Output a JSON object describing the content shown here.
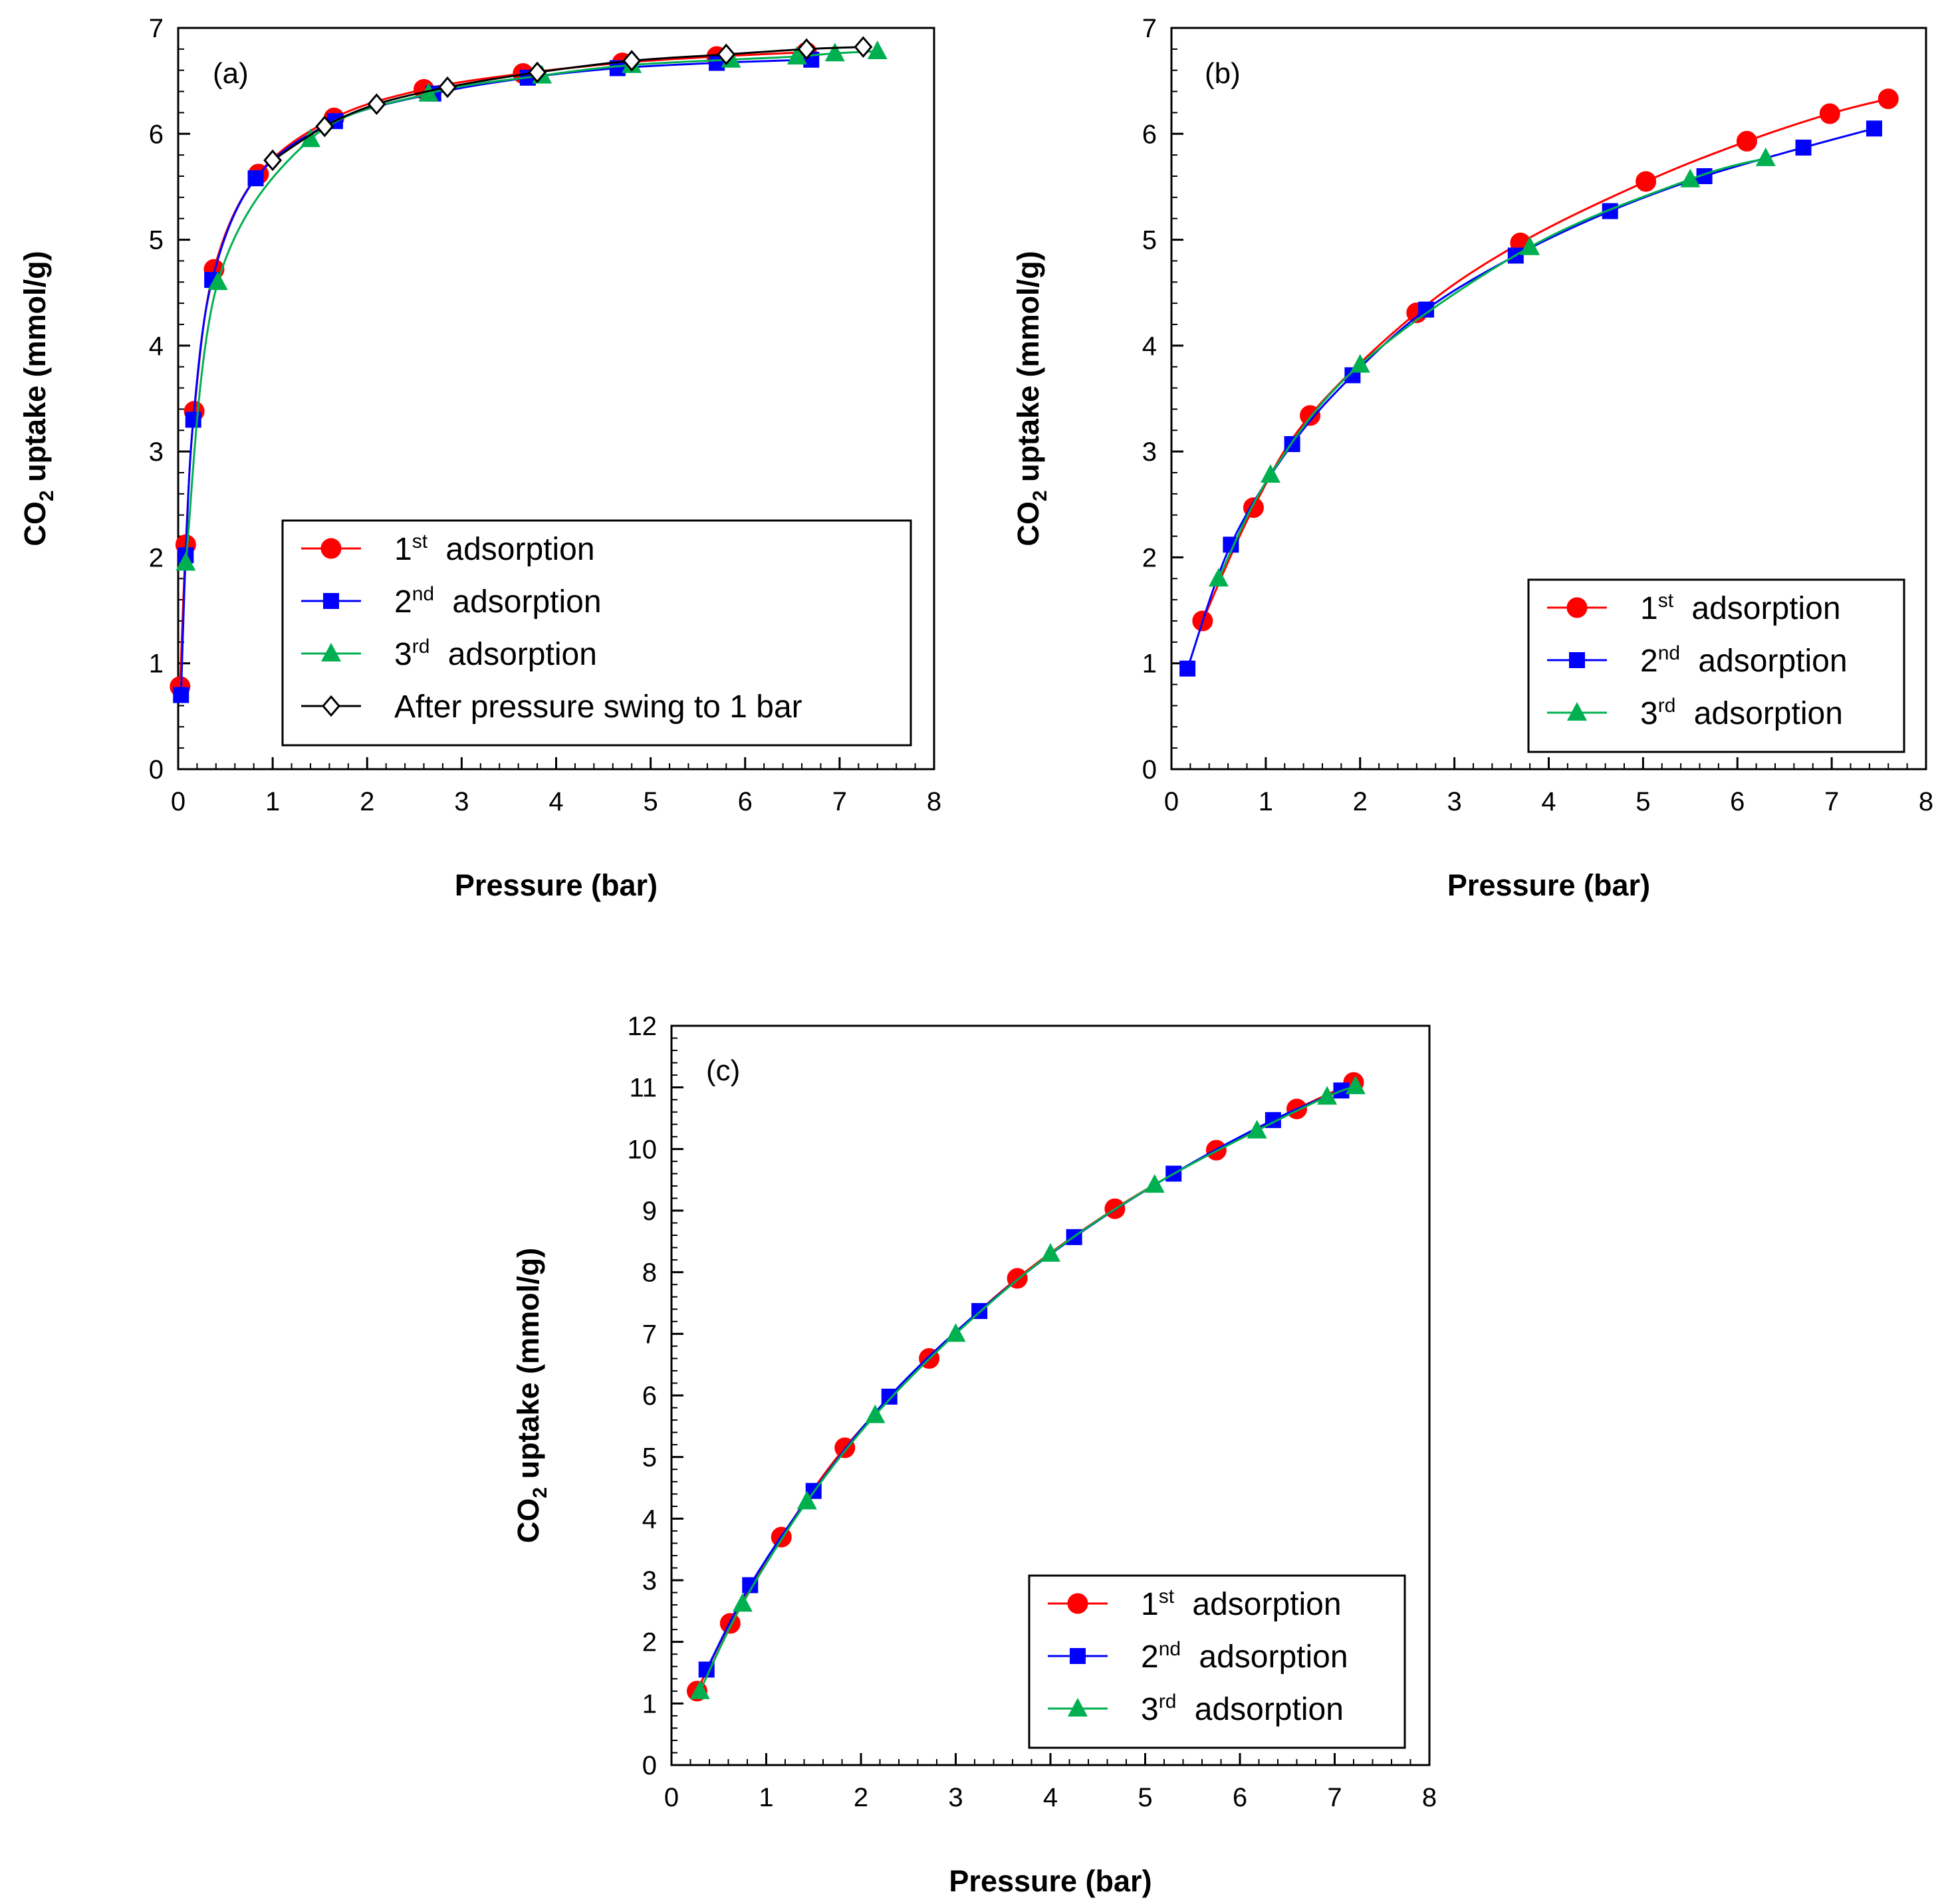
{
  "chart_data": [
    {
      "panel": "(a)",
      "type": "line",
      "xlabel": "Pressure (bar)",
      "ylabel": "uptake (mmol/g)",
      "ylabel_prefix": "CO",
      "ylabel_sub": "2",
      "xlim": [
        0,
        8
      ],
      "ylim": [
        0,
        7
      ],
      "xticks": [
        "0",
        "1",
        "2",
        "3",
        "4",
        "5",
        "6",
        "7",
        "8"
      ],
      "yticks": [
        "0",
        "1",
        "2",
        "3",
        "4",
        "5",
        "6",
        "7"
      ],
      "legend_position": "center-right",
      "series": [
        {
          "name": "adsorption",
          "ordinal": "1",
          "sup": "st",
          "color": "#ff0000",
          "marker": "circle",
          "x": [
            0.02,
            0.08,
            0.17,
            0.38,
            0.85,
            1.65,
            2.6,
            3.65,
            4.7,
            5.7,
            6.65
          ],
          "y": [
            0.78,
            2.12,
            3.38,
            4.72,
            5.62,
            6.15,
            6.42,
            6.57,
            6.67,
            6.73,
            6.77
          ]
        },
        {
          "name": "adsorption",
          "ordinal": "2",
          "sup": "nd",
          "color": "#0000ff",
          "marker": "square",
          "x": [
            0.03,
            0.08,
            0.16,
            0.36,
            0.82,
            1.66,
            2.7,
            3.7,
            4.65,
            5.7,
            6.7
          ],
          "y": [
            0.7,
            2.02,
            3.3,
            4.62,
            5.58,
            6.12,
            6.38,
            6.53,
            6.62,
            6.67,
            6.7
          ]
        },
        {
          "name": "adsorption",
          "ordinal": "3",
          "sup": "rd",
          "color": "#00b050",
          "marker": "triangle",
          "x": [
            0.08,
            0.42,
            1.4,
            2.65,
            3.85,
            4.8,
            5.85,
            6.55,
            6.95,
            7.4
          ],
          "y": [
            1.95,
            4.6,
            5.95,
            6.38,
            6.55,
            6.65,
            6.7,
            6.73,
            6.76,
            6.78
          ]
        },
        {
          "name": "After pressure swing to 1 bar",
          "ordinal": "",
          "sup": "",
          "color": "#000000",
          "marker": "diamond-open",
          "x": [
            1.0,
            1.55,
            2.1,
            2.85,
            3.8,
            4.8,
            5.8,
            6.65,
            7.25
          ],
          "y": [
            5.75,
            6.07,
            6.28,
            6.44,
            6.58,
            6.69,
            6.75,
            6.8,
            6.82
          ]
        }
      ]
    },
    {
      "panel": "(b)",
      "type": "line",
      "xlabel": "Pressure (bar)",
      "ylabel": "uptake (mmol/g)",
      "ylabel_prefix": "CO",
      "ylabel_sub": "2",
      "xlim": [
        0,
        8
      ],
      "ylim": [
        0,
        7
      ],
      "xticks": [
        "0",
        "1",
        "2",
        "3",
        "4",
        "5",
        "6",
        "7",
        "8"
      ],
      "yticks": [
        "0",
        "1",
        "2",
        "3",
        "4",
        "5",
        "6",
        "7"
      ],
      "legend_position": "bottom-right",
      "series": [
        {
          "name": "adsorption",
          "ordinal": "1",
          "sup": "st",
          "color": "#ff0000",
          "marker": "circle",
          "x": [
            0.33,
            0.87,
            1.47,
            2.6,
            3.7,
            5.03,
            6.1,
            6.98,
            7.6
          ],
          "y": [
            1.4,
            2.47,
            3.34,
            4.31,
            4.97,
            5.55,
            5.93,
            6.19,
            6.33
          ]
        },
        {
          "name": "adsorption",
          "ordinal": "2",
          "sup": "nd",
          "color": "#0000ff",
          "marker": "square",
          "x": [
            0.17,
            0.63,
            1.28,
            1.92,
            2.7,
            3.65,
            4.65,
            5.65,
            6.7,
            7.45
          ],
          "y": [
            0.95,
            2.12,
            3.07,
            3.72,
            4.34,
            4.85,
            5.27,
            5.6,
            5.87,
            6.05
          ]
        },
        {
          "name": "adsorption",
          "ordinal": "3",
          "sup": "rd",
          "color": "#00b050",
          "marker": "triangle",
          "x": [
            0.5,
            1.05,
            2.0,
            3.8,
            5.5,
            6.3
          ],
          "y": [
            1.8,
            2.78,
            3.82,
            4.93,
            5.57,
            5.77
          ]
        }
      ]
    },
    {
      "panel": "(c)",
      "type": "line",
      "xlabel": "Pressure (bar)",
      "ylabel": "uptake (mmol/g)",
      "ylabel_prefix": "CO",
      "ylabel_sub": "2",
      "xlim": [
        0,
        8
      ],
      "ylim": [
        0,
        12
      ],
      "xticks": [
        "0",
        "1",
        "2",
        "3",
        "4",
        "5",
        "6",
        "7",
        "8"
      ],
      "yticks": [
        "0",
        "1",
        "2",
        "3",
        "4",
        "5",
        "6",
        "7",
        "8",
        "9",
        "10",
        "11",
        "12"
      ],
      "legend_position": "bottom-right",
      "series": [
        {
          "name": "adsorption",
          "ordinal": "1",
          "sup": "st",
          "color": "#ff0000",
          "marker": "circle",
          "x": [
            0.27,
            0.62,
            1.16,
            1.83,
            2.72,
            3.65,
            4.68,
            5.75,
            6.6,
            7.2
          ],
          "y": [
            1.2,
            2.3,
            3.7,
            5.15,
            6.6,
            7.9,
            9.03,
            9.98,
            10.65,
            11.08
          ]
        },
        {
          "name": "adsorption",
          "ordinal": "2",
          "sup": "nd",
          "color": "#0000ff",
          "marker": "square",
          "x": [
            0.37,
            0.83,
            1.5,
            2.3,
            3.25,
            4.25,
            5.3,
            6.35,
            7.07
          ],
          "y": [
            1.55,
            2.92,
            4.45,
            5.98,
            7.37,
            8.57,
            9.6,
            10.47,
            10.95
          ]
        },
        {
          "name": "adsorption",
          "ordinal": "3",
          "sup": "rd",
          "color": "#00b050",
          "marker": "triangle",
          "x": [
            0.3,
            0.75,
            1.43,
            2.15,
            3.0,
            4.0,
            5.1,
            6.18,
            6.92,
            7.22
          ],
          "y": [
            1.2,
            2.62,
            4.28,
            5.68,
            7.0,
            8.3,
            9.42,
            10.3,
            10.85,
            11.02
          ]
        }
      ]
    }
  ]
}
